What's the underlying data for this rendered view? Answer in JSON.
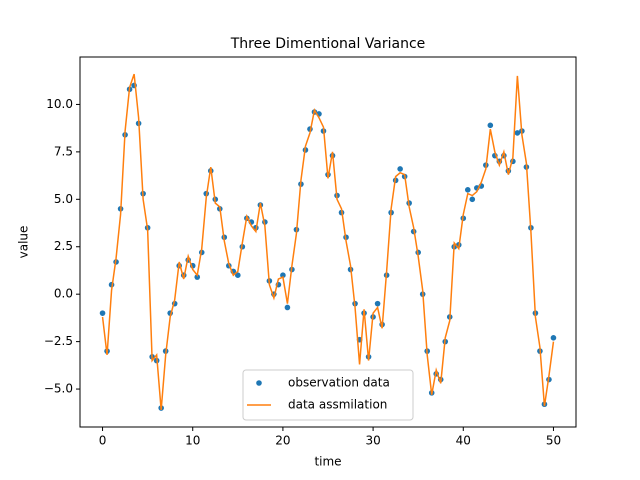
{
  "chart_data": {
    "type": "line",
    "title": "Three Dimentional Variance",
    "x_label": "time",
    "y_label": "value",
    "x": [
      0,
      0.5,
      1,
      1.5,
      2,
      2.5,
      3,
      3.5,
      4,
      4.5,
      5,
      5.5,
      6,
      6.5,
      7,
      7.5,
      8,
      8.5,
      9,
      9.5,
      10,
      10.5,
      11,
      11.5,
      12,
      12.5,
      13,
      13.5,
      14,
      14.5,
      15,
      15.5,
      16,
      16.5,
      17,
      17.5,
      18,
      18.5,
      19,
      19.5,
      20,
      20.5,
      21,
      21.5,
      22,
      22.5,
      23,
      23.5,
      24,
      24.5,
      25,
      25.5,
      26,
      26.5,
      27,
      27.5,
      28,
      28.5,
      29,
      29.5,
      30,
      30.5,
      31,
      31.5,
      32,
      32.5,
      33,
      33.5,
      34,
      34.5,
      35,
      35.5,
      36,
      36.5,
      37,
      37.5,
      38,
      38.5,
      39,
      39.5,
      40,
      40.5,
      41,
      41.5,
      42,
      42.5,
      43,
      43.5,
      44,
      44.5,
      45,
      45.5,
      46,
      46.5,
      47,
      47.5,
      48,
      48.5,
      49,
      49.5,
      50
    ],
    "series": [
      {
        "name": "observation data",
        "kind": "scatter",
        "color": "#1f77b4",
        "values": [
          -1.0,
          -3.0,
          0.5,
          1.7,
          4.5,
          8.4,
          10.8,
          11.0,
          9.0,
          5.3,
          3.5,
          -3.3,
          -3.5,
          -6.0,
          -3.0,
          -1.0,
          -0.5,
          1.5,
          1.0,
          1.8,
          1.5,
          0.9,
          2.2,
          5.3,
          6.5,
          5.0,
          4.5,
          3.0,
          1.5,
          1.2,
          1.0,
          2.5,
          4.0,
          3.8,
          3.5,
          4.7,
          3.8,
          0.7,
          0.0,
          0.5,
          1.0,
          -0.7,
          1.3,
          3.4,
          5.8,
          7.6,
          8.7,
          9.6,
          9.5,
          8.6,
          6.3,
          7.3,
          5.2,
          4.3,
          3.0,
          1.3,
          -0.5,
          -2.4,
          -1.0,
          -3.3,
          -1.2,
          -0.5,
          -1.6,
          1.0,
          4.3,
          6.0,
          6.6,
          6.2,
          4.8,
          3.3,
          2.2,
          0.0,
          -3.0,
          -5.2,
          -4.2,
          -4.5,
          -2.5,
          -1.2,
          2.5,
          2.6,
          4.0,
          5.5,
          5.0,
          5.6,
          5.7,
          6.8,
          8.9,
          7.3,
          7.0,
          7.3,
          6.5,
          7.0,
          8.5,
          8.6,
          6.7,
          3.5,
          -1.0,
          -3.0,
          -5.8,
          -4.5,
          -2.3
        ]
      },
      {
        "name": "data assmilation",
        "kind": "line",
        "color": "#ff7f0e",
        "values": [
          -1.2,
          -3.2,
          0.2,
          1.9,
          4.2,
          8.6,
          10.9,
          11.6,
          9.3,
          5.0,
          3.4,
          -3.5,
          -3.2,
          -6.1,
          -3.2,
          -1.2,
          -0.3,
          1.7,
          0.8,
          2.0,
          1.3,
          1.0,
          2.4,
          5.1,
          6.7,
          4.8,
          4.6,
          2.8,
          1.6,
          1.0,
          1.2,
          2.7,
          4.1,
          3.6,
          3.3,
          4.8,
          3.6,
          0.5,
          -0.2,
          0.8,
          0.9,
          -0.5,
          1.5,
          3.2,
          6.0,
          7.8,
          8.5,
          9.7,
          9.3,
          8.8,
          6.1,
          7.5,
          5.0,
          4.5,
          2.8,
          1.5,
          -0.7,
          -3.7,
          -0.8,
          -3.5,
          -1.0,
          -0.7,
          -1.8,
          1.2,
          4.5,
          6.2,
          6.4,
          6.3,
          4.6,
          3.5,
          2.0,
          0.2,
          -3.2,
          -5.3,
          -4.0,
          -4.7,
          -2.3,
          -1.4,
          2.7,
          2.4,
          4.2,
          5.3,
          5.2,
          5.4,
          5.9,
          6.6,
          8.7,
          7.5,
          6.8,
          7.5,
          6.3,
          7.2,
          11.5,
          8.4,
          6.9,
          3.3,
          -1.2,
          -2.8,
          -5.9,
          -4.3,
          -2.5
        ]
      }
    ],
    "xlim": [
      -2.5,
      52.5
    ],
    "ylim": [
      -7.0,
      12.5
    ],
    "xticks": [
      0,
      10,
      20,
      30,
      40,
      50
    ],
    "yticks": [
      {
        "value": -5,
        "label": "−5.0"
      },
      {
        "value": -2.5,
        "label": "−2.5"
      },
      {
        "value": 0,
        "label": "0.0"
      },
      {
        "value": 2.5,
        "label": "2.5"
      },
      {
        "value": 5,
        "label": "5.0"
      },
      {
        "value": 7.5,
        "label": "7.5"
      },
      {
        "value": 10,
        "label": "10.0"
      }
    ],
    "legend": "lower center"
  }
}
